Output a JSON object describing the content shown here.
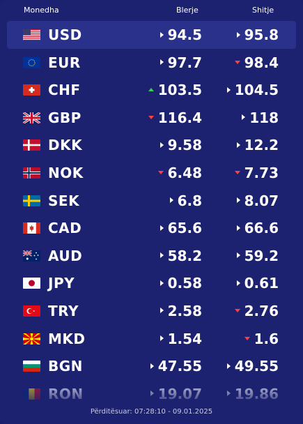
{
  "header": {
    "currency": "Monedha",
    "buy": "Blerje",
    "sell": "Shitje"
  },
  "rows": [
    {
      "code": "USD",
      "flag": "us-flag-icon",
      "buy": "94.5",
      "buy_trend": "neutral",
      "sell": "95.8",
      "sell_trend": "neutral"
    },
    {
      "code": "EUR",
      "flag": "eu-flag-icon",
      "buy": "97.7",
      "buy_trend": "neutral",
      "sell": "98.4",
      "sell_trend": "down"
    },
    {
      "code": "CHF",
      "flag": "ch-flag-icon",
      "buy": "103.5",
      "buy_trend": "up",
      "sell": "104.5",
      "sell_trend": "neutral"
    },
    {
      "code": "GBP",
      "flag": "gb-flag-icon",
      "buy": "116.4",
      "buy_trend": "down",
      "sell": "118",
      "sell_trend": "neutral"
    },
    {
      "code": "DKK",
      "flag": "dk-flag-icon",
      "buy": "9.58",
      "buy_trend": "neutral",
      "sell": "12.2",
      "sell_trend": "neutral"
    },
    {
      "code": "NOK",
      "flag": "no-flag-icon",
      "buy": "6.48",
      "buy_trend": "down",
      "sell": "7.73",
      "sell_trend": "down"
    },
    {
      "code": "SEK",
      "flag": "se-flag-icon",
      "buy": "6.8",
      "buy_trend": "neutral",
      "sell": "8.07",
      "sell_trend": "neutral"
    },
    {
      "code": "CAD",
      "flag": "ca-flag-icon",
      "buy": "65.6",
      "buy_trend": "neutral",
      "sell": "66.6",
      "sell_trend": "neutral"
    },
    {
      "code": "AUD",
      "flag": "au-flag-icon",
      "buy": "58.2",
      "buy_trend": "neutral",
      "sell": "59.2",
      "sell_trend": "neutral"
    },
    {
      "code": "JPY",
      "flag": "jp-flag-icon",
      "buy": "0.58",
      "buy_trend": "neutral",
      "sell": "0.61",
      "sell_trend": "neutral"
    },
    {
      "code": "TRY",
      "flag": "tr-flag-icon",
      "buy": "2.58",
      "buy_trend": "neutral",
      "sell": "2.76",
      "sell_trend": "down"
    },
    {
      "code": "MKD",
      "flag": "mk-flag-icon",
      "buy": "1.54",
      "buy_trend": "neutral",
      "sell": "1.6",
      "sell_trend": "down"
    },
    {
      "code": "BGN",
      "flag": "bg-flag-icon",
      "buy": "47.55",
      "buy_trend": "neutral",
      "sell": "49.55",
      "sell_trend": "neutral"
    },
    {
      "code": "RON",
      "flag": "ro-flag-icon",
      "buy": "19.07",
      "buy_trend": "neutral",
      "sell": "19.86",
      "sell_trend": "neutral"
    }
  ],
  "footer": {
    "updated": "Përditësuar: 07:28:10 - 09.01.2025"
  }
}
